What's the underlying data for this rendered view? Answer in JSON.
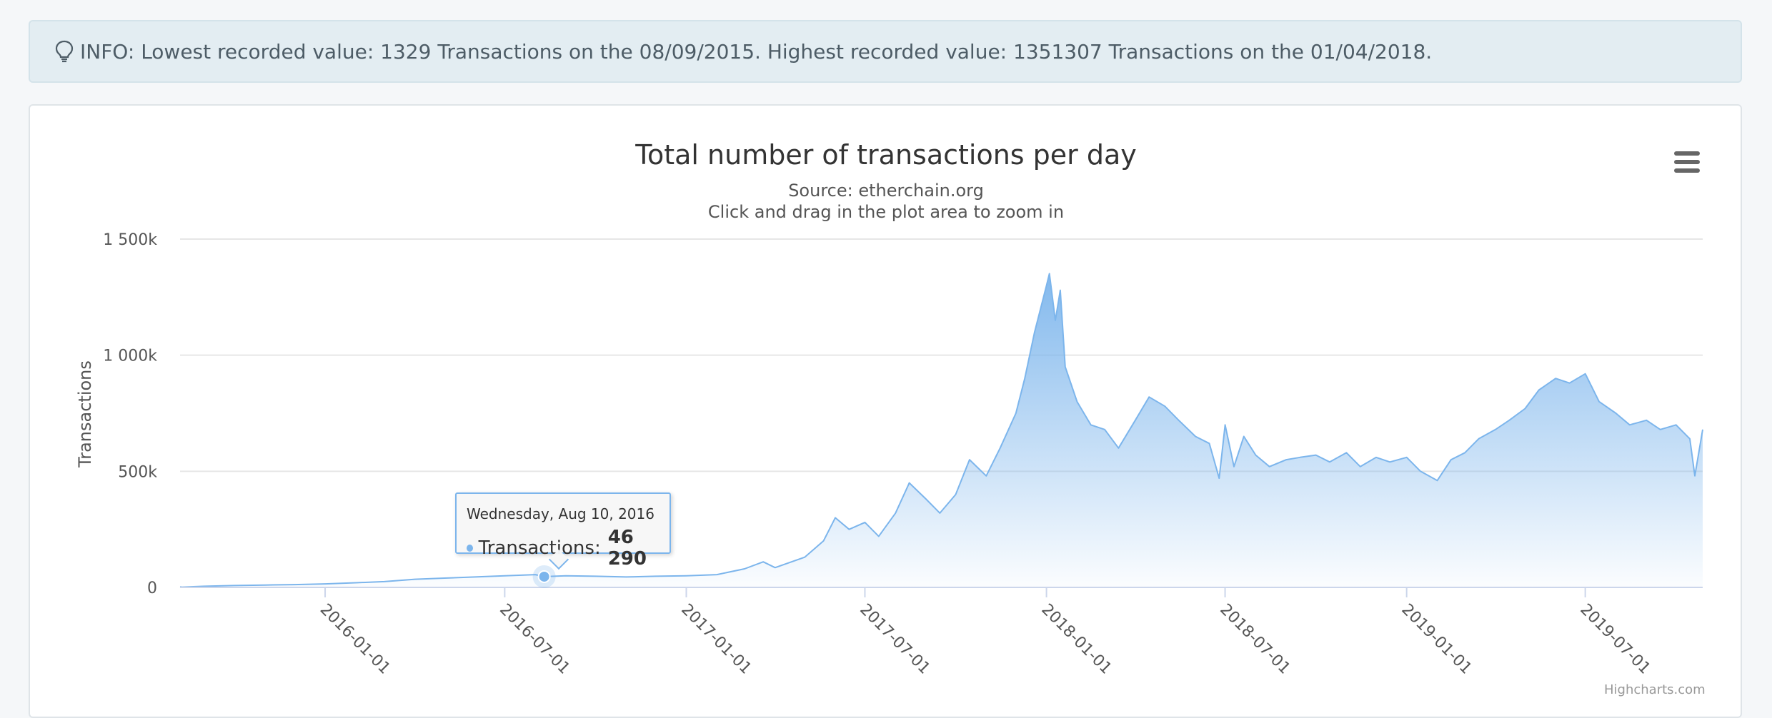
{
  "info": {
    "icon": "lightbulb-icon",
    "text": "INFO: Lowest recorded value: 1329 Transactions on the 08/09/2015. Highest recorded value: 1351307 Transactions on the 01/04/2018."
  },
  "tooltip": {
    "date": "Wednesday, Aug 10, 2016",
    "series_label": "Transactions:",
    "value": "46 290"
  },
  "menu": {
    "icon": "hamburger-menu-icon"
  },
  "credits": "Highcharts.com",
  "colors": {
    "series": "#7cb5ec",
    "grid": "#e6e6e6",
    "axis": "#ccd6eb"
  },
  "chart_data": {
    "type": "area",
    "title": "Total number of transactions per day",
    "subtitle_lines": [
      "Source: etherchain.org",
      "Click and drag in the plot area to zoom in"
    ],
    "ylabel": "Transactions",
    "xlabel": "",
    "ylim": [
      0,
      1500000
    ],
    "xlim": [
      "2015-08-07",
      "2019-10-28"
    ],
    "y_ticks": [
      {
        "value": 0,
        "label": "0"
      },
      {
        "value": 500000,
        "label": "500k"
      },
      {
        "value": 1000000,
        "label": "1 000k"
      },
      {
        "value": 1500000,
        "label": "1 500k"
      }
    ],
    "x_ticks": [
      "2016-01-01",
      "2016-07-01",
      "2017-01-01",
      "2017-07-01",
      "2018-01-01",
      "2018-07-01",
      "2019-01-01",
      "2019-07-01"
    ],
    "grid": true,
    "legend": "none",
    "highlighted_point": {
      "x": "2016-08-10",
      "y": 46290
    },
    "series": [
      {
        "name": "Transactions",
        "x": [
          "2015-08-07",
          "2015-08-09",
          "2015-09-01",
          "2015-10-01",
          "2015-11-01",
          "2015-12-01",
          "2016-01-01",
          "2016-02-01",
          "2016-03-01",
          "2016-04-01",
          "2016-05-01",
          "2016-06-01",
          "2016-07-01",
          "2016-08-01",
          "2016-08-10",
          "2016-09-01",
          "2016-10-01",
          "2016-11-01",
          "2016-12-01",
          "2017-01-01",
          "2017-02-01",
          "2017-03-01",
          "2017-03-20",
          "2017-04-01",
          "2017-05-01",
          "2017-05-20",
          "2017-06-01",
          "2017-06-15",
          "2017-07-01",
          "2017-07-15",
          "2017-08-01",
          "2017-08-15",
          "2017-09-01",
          "2017-09-15",
          "2017-10-01",
          "2017-10-15",
          "2017-11-01",
          "2017-11-15",
          "2017-12-01",
          "2017-12-10",
          "2017-12-20",
          "2018-01-01",
          "2018-01-04",
          "2018-01-10",
          "2018-01-15",
          "2018-01-20",
          "2018-02-01",
          "2018-02-15",
          "2018-03-01",
          "2018-03-15",
          "2018-04-01",
          "2018-04-15",
          "2018-05-01",
          "2018-05-15",
          "2018-06-01",
          "2018-06-15",
          "2018-06-25",
          "2018-07-01",
          "2018-07-10",
          "2018-07-20",
          "2018-08-01",
          "2018-08-15",
          "2018-09-01",
          "2018-09-15",
          "2018-10-01",
          "2018-10-15",
          "2018-11-01",
          "2018-11-15",
          "2018-12-01",
          "2018-12-15",
          "2019-01-01",
          "2019-01-15",
          "2019-02-01",
          "2019-02-15",
          "2019-03-01",
          "2019-03-15",
          "2019-04-01",
          "2019-04-15",
          "2019-05-01",
          "2019-05-15",
          "2019-06-01",
          "2019-06-15",
          "2019-07-01",
          "2019-07-15",
          "2019-08-01",
          "2019-08-15",
          "2019-09-01",
          "2019-09-15",
          "2019-10-01",
          "2019-10-15",
          "2019-10-20",
          "2019-10-28"
        ],
        "values": [
          2000,
          1329,
          5000,
          8000,
          10000,
          12000,
          15000,
          20000,
          25000,
          35000,
          40000,
          45000,
          50000,
          55000,
          46290,
          50000,
          48000,
          45000,
          48000,
          50000,
          55000,
          80000,
          110000,
          85000,
          130000,
          200000,
          300000,
          250000,
          280000,
          220000,
          320000,
          450000,
          380000,
          320000,
          400000,
          550000,
          480000,
          600000,
          750000,
          900000,
          1100000,
          1300000,
          1351307,
          1150000,
          1280000,
          950000,
          800000,
          700000,
          680000,
          600000,
          720000,
          820000,
          780000,
          720000,
          650000,
          620000,
          470000,
          700000,
          520000,
          650000,
          570000,
          520000,
          550000,
          560000,
          570000,
          540000,
          580000,
          520000,
          560000,
          540000,
          560000,
          500000,
          460000,
          550000,
          580000,
          640000,
          680000,
          720000,
          770000,
          850000,
          900000,
          880000,
          920000,
          800000,
          750000,
          700000,
          720000,
          680000,
          700000,
          640000,
          480000,
          680000
        ]
      }
    ]
  }
}
